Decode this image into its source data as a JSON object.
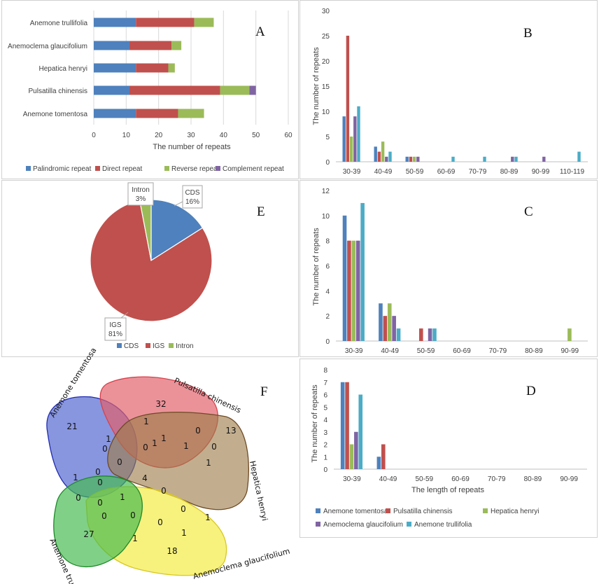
{
  "colors": {
    "palindromic": "#4e81bd",
    "direct": "#c0504d",
    "reverse": "#9bbb59",
    "complement": "#8064a2",
    "teal": "#4bacc6"
  },
  "panels": {
    "A": {
      "letter": "A",
      "chart_data": {
        "type": "bar",
        "orientation": "horizontal",
        "stacked": true,
        "categories": [
          "Anemone trullifolia",
          "Anemoclema glaucifolium",
          "Hepatica henryi",
          "Pulsatilla chinensis",
          "Anemone tomentosa"
        ],
        "series": [
          {
            "name": "Palindromic repeat",
            "values": [
              13,
              11,
              13,
              11,
              13
            ]
          },
          {
            "name": "Direct repeat",
            "values": [
              18,
              13,
              10,
              28,
              13
            ]
          },
          {
            "name": "Reverse repeat",
            "values": [
              6,
              3,
              2,
              9,
              8
            ]
          },
          {
            "name": "Complement repeat",
            "values": [
              0,
              0,
              0,
              2,
              0
            ]
          }
        ],
        "xlim": [
          0,
          60
        ],
        "xticks": [
          "0",
          "10",
          "20",
          "30",
          "40",
          "50",
          "60"
        ],
        "xlabel": "The number of repeats",
        "legend": "bottom"
      }
    },
    "B": {
      "letter": "B",
      "chart_data": {
        "type": "bar",
        "categories": [
          "30-39",
          "40-49",
          "50-59",
          "60-69",
          "70-79",
          "80-89",
          "90-99",
          "110-119"
        ],
        "series": [
          {
            "name": "Anemone tomentosa",
            "values": [
              9,
              3,
              1,
              0,
              0,
              0,
              0,
              0
            ]
          },
          {
            "name": "Pulsatilla chinensis",
            "values": [
              25,
              2,
              1,
              0,
              0,
              0,
              0,
              0
            ]
          },
          {
            "name": "Hepatica henryi",
            "values": [
              5,
              4,
              1,
              0,
              0,
              0,
              0,
              0
            ]
          },
          {
            "name": "Anemoclema glaucifolium",
            "values": [
              9,
              1,
              1,
              0,
              0,
              1,
              1,
              0
            ]
          },
          {
            "name": "Anemone trullifolia",
            "values": [
              11,
              2,
              0,
              1,
              1,
              1,
              0,
              2
            ]
          }
        ],
        "ylim": [
          0,
          30
        ],
        "yticks": [
          "0",
          "5",
          "10",
          "15",
          "20",
          "25",
          "30"
        ],
        "ylabel": "The number of repeats"
      }
    },
    "C": {
      "letter": "C",
      "chart_data": {
        "type": "bar",
        "categories": [
          "30-39",
          "40-49",
          "50-59",
          "60-69",
          "70-79",
          "80-89",
          "90-99"
        ],
        "series": [
          {
            "name": "Anemone tomentosa",
            "values": [
              10,
              3,
              0,
              0,
              0,
              0,
              0
            ]
          },
          {
            "name": "Pulsatilla chinensis",
            "values": [
              8,
              2,
              1,
              0,
              0,
              0,
              0
            ]
          },
          {
            "name": "Hepatica henryi",
            "values": [
              8,
              3,
              0,
              0,
              0,
              0,
              1
            ]
          },
          {
            "name": "Anemoclema glaucifolium",
            "values": [
              8,
              2,
              1,
              0,
              0,
              0,
              0
            ]
          },
          {
            "name": "Anemone trullifolia",
            "values": [
              11,
              1,
              1,
              0,
              0,
              0,
              0
            ]
          }
        ],
        "ylim": [
          0,
          12
        ],
        "yticks": [
          "0",
          "2",
          "4",
          "6",
          "8",
          "10",
          "12"
        ],
        "ylabel": "The number of repeats"
      }
    },
    "D": {
      "letter": "D",
      "chart_data": {
        "type": "bar",
        "categories": [
          "30-39",
          "40-49",
          "50-59",
          "60-69",
          "70-79",
          "80-89",
          "90-99"
        ],
        "series": [
          {
            "name": "Anemone tomentosa",
            "values": [
              7,
              1,
              0,
              0,
              0,
              0,
              0
            ]
          },
          {
            "name": "Pulsatilla chinensis",
            "values": [
              7,
              2,
              0,
              0,
              0,
              0,
              0
            ]
          },
          {
            "name": "Hepatica henryi",
            "values": [
              2,
              0,
              0,
              0,
              0,
              0,
              0
            ]
          },
          {
            "name": "Anemoclema glaucifolium",
            "values": [
              3,
              0,
              0,
              0,
              0,
              0,
              0
            ]
          },
          {
            "name": "Anemone trullifolia",
            "values": [
              6,
              0,
              0,
              0,
              0,
              0,
              0
            ]
          }
        ],
        "ylim": [
          0,
          8
        ],
        "yticks": [
          "0",
          "1",
          "2",
          "3",
          "4",
          "5",
          "6",
          "7",
          "8"
        ],
        "ylabel": "The number of repeats",
        "xlabel": "The length of repeats",
        "legend": "bottom"
      }
    },
    "E": {
      "letter": "E",
      "chart_data": {
        "type": "pie",
        "labels": [
          "CDS",
          "IGS",
          "Intron"
        ],
        "values": [
          16,
          81,
          3
        ],
        "data_labels": [
          "16%",
          "81%",
          "3%"
        ],
        "legend": "bottom"
      }
    },
    "F": {
      "letter": "F",
      "sets": [
        "Anemone tomentosa",
        "Pulsatilla chinensis",
        "Hepatica henryi",
        "Anemoclema glaucifolium",
        "Anemone trullifolia"
      ],
      "numbers": [
        "21",
        "32",
        "13",
        "18",
        "27",
        "1",
        "1",
        "1",
        "0",
        "0",
        "1",
        "0",
        "1",
        "0",
        "0",
        "1",
        "0",
        "1",
        "0",
        "0",
        "4",
        "1",
        "0",
        "0",
        "0",
        "0",
        "1",
        "0",
        "1",
        "0",
        "1"
      ]
    }
  }
}
